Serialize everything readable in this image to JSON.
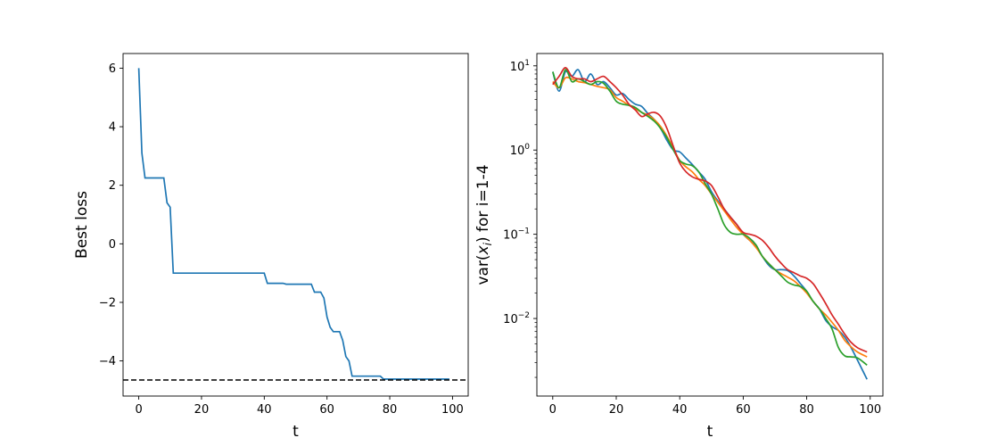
{
  "chart_data": [
    {
      "type": "line",
      "xlabel": "t",
      "ylabel": "Best loss",
      "xlim": [
        -5,
        105
      ],
      "ylim": [
        -5.2,
        6.5
      ],
      "xticks": [
        0,
        20,
        40,
        60,
        80,
        100
      ],
      "yticks": [
        -4,
        -2,
        0,
        2,
        4,
        6
      ],
      "xtick_labels": [
        "0",
        "20",
        "40",
        "60",
        "80",
        "100"
      ],
      "ytick_labels": [
        "−4",
        "−2",
        "0",
        "2",
        "4",
        "6"
      ],
      "reference_line": {
        "y": -4.65,
        "style": "dashed",
        "color": "#000000"
      },
      "series": [
        {
          "color": "#1f77b4",
          "x": [
            0,
            1,
            2,
            3,
            4,
            5,
            6,
            7,
            8,
            9,
            10,
            11,
            12,
            40,
            41,
            46,
            47,
            55,
            56,
            58,
            59,
            60,
            61,
            62,
            63,
            64,
            65,
            66,
            67,
            68,
            69,
            77,
            78,
            99
          ],
          "y": [
            6.0,
            3.1,
            2.25,
            2.25,
            2.25,
            2.25,
            2.25,
            2.25,
            2.25,
            1.4,
            1.25,
            -1.0,
            -1.0,
            -1.0,
            -1.35,
            -1.35,
            -1.38,
            -1.38,
            -1.65,
            -1.65,
            -1.85,
            -2.5,
            -2.85,
            -3.0,
            -3.0,
            -3.0,
            -3.3,
            -3.85,
            -4.0,
            -4.52,
            -4.52,
            -4.52,
            -4.62,
            -4.62
          ]
        }
      ]
    },
    {
      "type": "line",
      "xlabel": "t",
      "ylabel_prefix": "var(",
      "ylabel_var": "x",
      "ylabel_sub": "i",
      "ylabel_suffix": ") for i=1-4",
      "yscale": "log",
      "xlim": [
        -5,
        104
      ],
      "ylim": [
        0.0012,
        14
      ],
      "xticks": [
        0,
        20,
        40,
        60,
        80,
        100
      ],
      "xtick_labels": [
        "0",
        "20",
        "40",
        "60",
        "80",
        "100"
      ],
      "yticks": [
        0.01,
        0.1,
        1,
        10
      ],
      "ytick_labels": [
        {
          "base": "10",
          "exp": "−2"
        },
        {
          "base": "10",
          "exp": "−1"
        },
        {
          "base": "10",
          "exp": "0"
        },
        {
          "base": "10",
          "exp": "1"
        }
      ],
      "series": [
        {
          "color": "#1f77b4",
          "x": [
            0,
            2,
            4,
            6,
            8,
            10,
            12,
            14,
            16,
            18,
            20,
            22,
            24,
            26,
            28,
            30,
            32,
            34,
            36,
            38,
            40,
            42,
            44,
            46,
            48,
            50,
            52,
            54,
            56,
            58,
            60,
            62,
            64,
            66,
            68,
            70,
            72,
            74,
            76,
            78,
            80,
            82,
            84,
            86,
            88,
            90,
            92,
            94,
            96,
            99
          ],
          "y": [
            8.5,
            5.0,
            8.5,
            7.5,
            9.0,
            6.5,
            8.0,
            6.0,
            6.5,
            5.5,
            4.5,
            4.7,
            4.0,
            3.5,
            3.3,
            2.7,
            2.3,
            1.8,
            1.3,
            1.0,
            0.95,
            0.8,
            0.67,
            0.55,
            0.45,
            0.32,
            0.25,
            0.2,
            0.16,
            0.13,
            0.1,
            0.085,
            0.072,
            0.055,
            0.043,
            0.038,
            0.038,
            0.037,
            0.032,
            0.026,
            0.021,
            0.016,
            0.013,
            0.0095,
            0.008,
            0.0072,
            0.006,
            0.0045,
            0.0032,
            0.0019
          ]
        },
        {
          "color": "#ff7f0e",
          "x": [
            0,
            2,
            4,
            6,
            8,
            10,
            12,
            14,
            16,
            18,
            20,
            22,
            24,
            26,
            28,
            30,
            32,
            34,
            36,
            38,
            40,
            42,
            44,
            46,
            48,
            50,
            52,
            54,
            56,
            58,
            60,
            62,
            64,
            66,
            68,
            70,
            72,
            74,
            76,
            78,
            80,
            82,
            84,
            86,
            88,
            90,
            92,
            94,
            96,
            99
          ],
          "y": [
            6.5,
            5.5,
            7.2,
            7.0,
            6.5,
            6.3,
            6.0,
            5.7,
            5.5,
            5.2,
            4.2,
            3.8,
            3.4,
            3.1,
            2.8,
            2.6,
            2.3,
            1.9,
            1.45,
            1.05,
            0.75,
            0.63,
            0.55,
            0.45,
            0.38,
            0.3,
            0.24,
            0.19,
            0.15,
            0.12,
            0.1,
            0.085,
            0.07,
            0.055,
            0.045,
            0.038,
            0.034,
            0.031,
            0.028,
            0.024,
            0.02,
            0.016,
            0.013,
            0.011,
            0.009,
            0.0072,
            0.0055,
            0.0046,
            0.004,
            0.0035
          ]
        },
        {
          "color": "#2ca02c",
          "x": [
            0,
            2,
            4,
            6,
            8,
            10,
            12,
            14,
            16,
            18,
            20,
            22,
            24,
            26,
            28,
            30,
            32,
            34,
            36,
            38,
            40,
            42,
            44,
            46,
            48,
            50,
            52,
            54,
            56,
            58,
            60,
            62,
            64,
            66,
            68,
            70,
            72,
            74,
            76,
            78,
            80,
            82,
            84,
            86,
            88,
            90,
            92,
            94,
            96,
            99
          ],
          "y": [
            8.5,
            5.5,
            9.0,
            6.5,
            7.0,
            6.5,
            6.0,
            6.5,
            6.2,
            5.0,
            3.8,
            3.5,
            3.4,
            3.2,
            2.8,
            2.5,
            2.2,
            1.8,
            1.4,
            1.0,
            0.75,
            0.68,
            0.65,
            0.55,
            0.4,
            0.3,
            0.2,
            0.13,
            0.105,
            0.1,
            0.1,
            0.09,
            0.075,
            0.055,
            0.045,
            0.038,
            0.032,
            0.027,
            0.025,
            0.024,
            0.021,
            0.016,
            0.013,
            0.01,
            0.0075,
            0.0045,
            0.0036,
            0.0035,
            0.0034,
            0.0028
          ]
        },
        {
          "color": "#d62728",
          "x": [
            0,
            2,
            4,
            6,
            8,
            10,
            12,
            14,
            16,
            18,
            20,
            22,
            24,
            26,
            28,
            30,
            32,
            34,
            36,
            38,
            40,
            42,
            44,
            46,
            48,
            50,
            52,
            54,
            56,
            58,
            60,
            62,
            64,
            66,
            68,
            70,
            72,
            74,
            76,
            78,
            80,
            82,
            84,
            86,
            88,
            90,
            92,
            94,
            96,
            99
          ],
          "y": [
            6.0,
            7.5,
            9.5,
            7.5,
            7.0,
            7.0,
            6.5,
            7.0,
            7.5,
            6.5,
            5.5,
            4.5,
            3.5,
            3.0,
            2.5,
            2.7,
            2.8,
            2.5,
            1.8,
            1.1,
            0.7,
            0.55,
            0.48,
            0.45,
            0.43,
            0.38,
            0.28,
            0.2,
            0.16,
            0.13,
            0.105,
            0.1,
            0.095,
            0.085,
            0.07,
            0.055,
            0.045,
            0.038,
            0.035,
            0.032,
            0.03,
            0.026,
            0.02,
            0.015,
            0.011,
            0.0085,
            0.0065,
            0.0052,
            0.0045,
            0.004
          ]
        }
      ]
    }
  ]
}
